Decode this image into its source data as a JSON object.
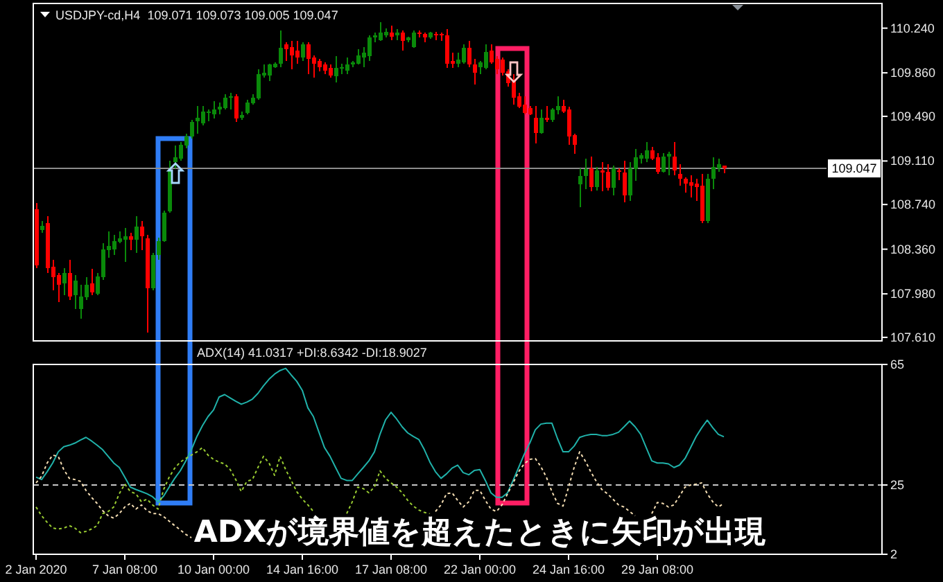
{
  "chart_data": [
    {
      "type": "candlestick",
      "title": "USDJPY-cd,H4  109.071 109.073 109.005 109.047",
      "categories": [
        null,
        null,
        null,
        null,
        null,
        null,
        null,
        null,
        null,
        null,
        null,
        null,
        null,
        null,
        null,
        null,
        null,
        null,
        null,
        null,
        null,
        null,
        null,
        null,
        null,
        null,
        null,
        null,
        null,
        null,
        null,
        null,
        null,
        null,
        null,
        null,
        null,
        null,
        null,
        null,
        null,
        null,
        null,
        null,
        null,
        null,
        null,
        null,
        null,
        null,
        null,
        null,
        null,
        null,
        null,
        null,
        null,
        null,
        null,
        null,
        null,
        null,
        null,
        null,
        null,
        null,
        null,
        null,
        null,
        null,
        null,
        null,
        null,
        null,
        null,
        null,
        null,
        null,
        null,
        null,
        null,
        null,
        null,
        null,
        null,
        null,
        null,
        null,
        null,
        null,
        null,
        null,
        null,
        null,
        null,
        null,
        null,
        null,
        null,
        null,
        null,
        null,
        null,
        null,
        null,
        null,
        null,
        null,
        null,
        null,
        null,
        null,
        null,
        null,
        null,
        null,
        null,
        null,
        null,
        null,
        null,
        null,
        null,
        null,
        null,
        null,
        null,
        null,
        null,
        null,
        null,
        null,
        null,
        null,
        null,
        null,
        null,
        null,
        null,
        null,
        null,
        null,
        null,
        null,
        null,
        null,
        null,
        null,
        null,
        null,
        null,
        null,
        null
      ],
      "ohlc": [
        [
          108.7,
          108.75,
          108.2,
          108.22
        ],
        [
          108.52,
          108.6,
          108.5,
          108.56
        ],
        [
          108.58,
          108.64,
          108.16,
          108.2
        ],
        [
          108.21,
          108.27,
          108.01,
          108.12
        ],
        [
          108.14,
          108.16,
          107.91,
          108.06
        ],
        [
          108.07,
          108.2,
          107.97,
          108.16
        ],
        [
          108.16,
          108.27,
          107.93,
          107.96
        ],
        [
          107.97,
          108.14,
          107.85,
          108.09
        ],
        [
          107.85,
          108.06,
          107.77,
          107.96
        ],
        [
          107.95,
          108.12,
          107.93,
          108.06
        ],
        [
          108.07,
          108.19,
          107.97,
          107.99
        ],
        [
          107.98,
          108.16,
          107.97,
          108.13
        ],
        [
          108.12,
          108.41,
          108.1,
          108.36
        ],
        [
          108.35,
          108.51,
          108.29,
          108.39
        ],
        [
          108.36,
          108.48,
          108.31,
          108.43
        ],
        [
          108.42,
          108.51,
          108.41,
          108.45
        ],
        [
          108.44,
          108.54,
          108.25,
          108.47
        ],
        [
          108.47,
          108.5,
          108.35,
          108.44
        ],
        [
          108.44,
          108.64,
          108.33,
          108.55
        ],
        [
          108.55,
          108.6,
          108.35,
          108.47
        ],
        [
          108.45,
          108.48,
          107.65,
          108.03
        ],
        [
          108.03,
          108.33,
          108.01,
          108.31
        ],
        [
          108.31,
          108.46,
          108.27,
          108.43
        ],
        [
          108.43,
          108.69,
          108.42,
          108.67
        ],
        [
          108.68,
          109.11,
          108.67,
          109.03
        ],
        [
          109.1,
          109.24,
          109.05,
          109.14
        ],
        [
          109.13,
          109.27,
          109.11,
          109.25
        ],
        [
          109.24,
          109.34,
          109.22,
          109.32
        ],
        [
          109.32,
          109.46,
          109.3,
          109.44
        ],
        [
          109.45,
          109.58,
          109.34,
          109.48
        ],
        [
          109.43,
          109.58,
          109.41,
          109.53
        ],
        [
          109.52,
          109.55,
          109.45,
          109.53
        ],
        [
          109.51,
          109.62,
          109.47,
          109.55
        ],
        [
          109.55,
          109.61,
          109.51,
          109.57
        ],
        [
          109.56,
          109.68,
          109.55,
          109.65
        ],
        [
          109.65,
          109.69,
          109.55,
          109.66
        ],
        [
          109.66,
          109.68,
          109.44,
          109.47
        ],
        [
          109.48,
          109.53,
          109.46,
          109.5
        ],
        [
          109.52,
          109.63,
          109.51,
          109.61
        ],
        [
          109.6,
          109.68,
          109.59,
          109.65
        ],
        [
          109.64,
          109.89,
          109.63,
          109.85
        ],
        [
          109.84,
          109.93,
          109.82,
          109.86
        ],
        [
          109.84,
          109.94,
          109.79,
          109.93
        ],
        [
          109.91,
          109.95,
          109.9,
          109.94
        ],
        [
          109.94,
          110.22,
          109.91,
          110.07
        ],
        [
          110.1,
          110.12,
          109.96,
          110.06
        ],
        [
          110.08,
          110.13,
          109.89,
          110.01
        ],
        [
          110.05,
          110.13,
          109.94,
          109.99
        ],
        [
          109.99,
          110.12,
          109.96,
          110.1
        ],
        [
          110.1,
          110.12,
          109.85,
          109.98
        ],
        [
          109.99,
          110.01,
          109.82,
          109.94
        ],
        [
          109.96,
          109.98,
          109.87,
          109.91
        ],
        [
          109.93,
          109.95,
          109.85,
          109.88
        ],
        [
          109.9,
          109.93,
          109.82,
          109.84
        ],
        [
          109.83,
          110.0,
          109.78,
          109.9
        ],
        [
          109.9,
          109.94,
          109.85,
          109.91
        ],
        [
          109.88,
          109.99,
          109.85,
          109.93
        ],
        [
          109.93,
          109.96,
          109.91,
          109.95
        ],
        [
          109.94,
          110.06,
          109.93,
          110.01
        ],
        [
          109.99,
          110.08,
          109.91,
          110.03
        ],
        [
          110.0,
          110.18,
          109.96,
          110.16
        ],
        [
          110.16,
          110.2,
          110.12,
          110.18
        ],
        [
          110.14,
          110.29,
          110.13,
          110.2
        ],
        [
          110.18,
          110.24,
          110.16,
          110.21
        ],
        [
          110.2,
          110.26,
          110.14,
          110.17
        ],
        [
          110.18,
          110.23,
          110.14,
          110.2
        ],
        [
          110.2,
          110.22,
          110.05,
          110.13
        ],
        [
          110.14,
          110.17,
          110.12,
          110.16
        ],
        [
          110.08,
          110.22,
          110.07,
          110.2
        ],
        [
          110.2,
          110.22,
          110.16,
          110.19
        ],
        [
          110.19,
          110.2,
          110.12,
          110.16
        ],
        [
          110.16,
          110.21,
          110.15,
          110.2
        ],
        [
          110.19,
          110.21,
          110.14,
          110.18
        ],
        [
          110.19,
          110.2,
          110.13,
          110.18
        ],
        [
          110.18,
          110.23,
          109.9,
          109.94
        ],
        [
          109.96,
          110.03,
          109.9,
          109.94
        ],
        [
          109.94,
          110.03,
          109.91,
          109.97
        ],
        [
          109.95,
          110.1,
          109.94,
          110.07
        ],
        [
          110.07,
          110.13,
          109.91,
          109.93
        ],
        [
          109.93,
          109.98,
          109.76,
          109.86
        ],
        [
          109.91,
          109.96,
          109.85,
          109.95
        ],
        [
          109.9,
          110.1,
          109.89,
          110.04
        ],
        [
          110.05,
          110.1,
          109.94,
          109.95
        ],
        [
          109.98,
          110.0,
          109.85,
          109.89
        ],
        [
          109.97,
          109.99,
          109.84,
          109.86
        ],
        [
          109.87,
          109.89,
          109.74,
          109.77
        ],
        [
          109.79,
          109.85,
          109.59,
          109.65
        ],
        [
          109.66,
          109.69,
          109.56,
          109.57
        ],
        [
          109.59,
          109.66,
          109.51,
          109.52
        ],
        [
          109.56,
          109.58,
          109.5,
          109.51
        ],
        [
          109.48,
          109.58,
          109.26,
          109.35
        ],
        [
          109.35,
          109.55,
          109.34,
          109.48
        ],
        [
          109.48,
          109.58,
          109.44,
          109.46
        ],
        [
          109.46,
          109.56,
          109.44,
          109.55
        ],
        [
          109.54,
          109.66,
          109.51,
          109.58
        ],
        [
          109.58,
          109.63,
          109.52,
          109.53
        ],
        [
          109.55,
          109.57,
          109.25,
          109.32
        ],
        [
          109.33,
          109.34,
          109.17,
          109.25
        ],
        [
          108.91,
          109.05,
          108.72,
          108.98
        ],
        [
          108.98,
          109.13,
          108.87,
          109.04
        ],
        [
          109.05,
          109.15,
          108.85,
          108.89
        ],
        [
          108.89,
          109.06,
          108.86,
          109.03
        ],
        [
          109.03,
          109.1,
          108.85,
          109.01
        ],
        [
          109.02,
          109.08,
          108.86,
          108.88
        ],
        [
          108.88,
          109.07,
          108.82,
          109.05
        ],
        [
          109.03,
          109.05,
          108.95,
          109.02
        ],
        [
          109.01,
          109.11,
          108.76,
          108.82
        ],
        [
          108.82,
          109.1,
          108.77,
          109.05
        ],
        [
          109.04,
          109.21,
          108.94,
          109.14
        ],
        [
          109.13,
          109.18,
          109.09,
          109.16
        ],
        [
          109.13,
          109.27,
          109.1,
          109.2
        ],
        [
          109.2,
          109.23,
          109.12,
          109.13
        ],
        [
          109.14,
          109.18,
          109.0,
          109.02
        ],
        [
          109.02,
          109.18,
          109.01,
          109.15
        ],
        [
          109.15,
          109.19,
          108.99,
          109.17
        ],
        [
          109.15,
          109.27,
          108.99,
          109.03
        ],
        [
          109.0,
          109.08,
          108.9,
          108.96
        ],
        [
          108.96,
          108.97,
          108.84,
          108.92
        ],
        [
          108.93,
          108.99,
          108.8,
          108.9
        ],
        [
          108.92,
          108.96,
          108.77,
          108.89
        ],
        [
          108.9,
          109.0,
          108.58,
          108.6
        ],
        [
          108.6,
          109.0,
          108.58,
          108.96
        ],
        [
          108.96,
          109.14,
          108.87,
          109.06
        ],
        [
          109.05,
          109.13,
          109.02,
          109.08
        ],
        [
          109.071,
          109.073,
          109.005,
          109.047
        ],
        null,
        null,
        null,
        null,
        null,
        null,
        null,
        null,
        null,
        null,
        null,
        null,
        null,
        null,
        null,
        null,
        null,
        null,
        null,
        null,
        null,
        null,
        null,
        null,
        null,
        null,
        null,
        null
      ],
      "colors": [
        "#ff0000",
        "#0a8a0a",
        "#ff0000",
        "#ff0000",
        "#ff0000",
        "#0a8a0a",
        "#ff0000",
        "#0a8a0a",
        "#0a8a0a",
        "#0a8a0a",
        "#ff0000",
        "#0a8a0a",
        "#0a8a0a",
        "#0a8a0a",
        "#0a8a0a",
        "#0a8a0a",
        "#0a8a0a",
        "#ff0000",
        "#0a8a0a",
        "#ff0000",
        "#ff0000",
        "#0a8a0a",
        "#0a8a0a",
        "#0a8a0a",
        "#0a8a0a",
        "#0a8a0a",
        "#0a8a0a",
        "#0a8a0a",
        "#0a8a0a",
        "#0a8a0a",
        "#0a8a0a",
        "#0a8a0a",
        "#0a8a0a",
        "#0a8a0a",
        "#0a8a0a",
        "#0a8a0a",
        "#ff0000",
        "#0a8a0a",
        "#0a8a0a",
        "#0a8a0a",
        "#0a8a0a",
        "#0a8a0a",
        "#0a8a0a",
        "#0a8a0a",
        "#0a8a0a",
        "#ff0000",
        "#ff0000",
        "#ff0000",
        "#0a8a0a",
        "#ff0000",
        "#ff0000",
        "#ff0000",
        "#ff0000",
        "#ff0000",
        "#0a8a0a",
        "#0a8a0a",
        "#0a8a0a",
        "#0a8a0a",
        "#0a8a0a",
        "#0a8a0a",
        "#0a8a0a",
        "#0a8a0a",
        "#0a8a0a",
        "#0a8a0a",
        "#ff0000",
        "#0a8a0a",
        "#ff0000",
        "#0a8a0a",
        "#0a8a0a",
        "#ff0000",
        "#ff0000",
        "#0a8a0a",
        "#ff0000",
        "#ff0000",
        "#ff0000",
        "#ff0000",
        "#0a8a0a",
        "#0a8a0a",
        "#ff0000",
        "#ff0000",
        "#0a8a0a",
        "#0a8a0a",
        "#ff0000",
        "#ff0000",
        "#ff0000",
        "#ff0000",
        "#ff0000",
        "#ff0000",
        "#ff0000",
        "#ff0000",
        "#ff0000",
        "#0a8a0a",
        "#ff0000",
        "#0a8a0a",
        "#0a8a0a",
        "#ff0000",
        "#ff0000",
        "#ff0000",
        "#0a8a0a",
        "#0a8a0a",
        "#ff0000",
        "#0a8a0a",
        "#ff0000",
        "#ff0000",
        "#0a8a0a",
        "#ff0000",
        "#ff0000",
        "#0a8a0a",
        "#0a8a0a",
        "#0a8a0a",
        "#0a8a0a",
        "#ff0000",
        "#ff0000",
        "#0a8a0a",
        "#0a8a0a",
        "#ff0000",
        "#ff0000",
        "#ff0000",
        "#ff0000",
        "#ff0000",
        "#ff0000",
        "#0a8a0a",
        "#0a8a0a",
        "#0a8a0a",
        "#ff0000",
        null,
        null,
        null,
        null,
        null,
        null,
        null,
        null,
        null,
        null,
        null,
        null,
        null,
        null,
        null,
        null,
        null,
        null,
        null,
        null,
        null,
        null,
        null,
        null,
        null,
        null,
        null,
        null
      ],
      "ylim": [
        107.58,
        110.45
      ],
      "yticks": [
        {
          "value": 107.61,
          "label": "107.610"
        },
        {
          "value": 107.98,
          "label": "107.980"
        },
        {
          "value": 108.36,
          "label": "108.360"
        },
        {
          "value": 108.74,
          "label": "108.740"
        },
        {
          "value": 109.11,
          "label": "109.110"
        },
        {
          "value": 109.49,
          "label": "109.490"
        },
        {
          "value": 109.86,
          "label": "109.860"
        },
        {
          "value": 110.24,
          "label": "110.240"
        }
      ],
      "ref_lines": [
        {
          "axis": "y",
          "value": 109.047,
          "label": "109.047",
          "color": "#8c8c8c"
        }
      ]
    },
    {
      "type": "line",
      "title": "ADX(14) 41.0317 +DI:8.6342 -DI:18.9027",
      "categories": [
        "2 Jan 2020",
        null,
        null,
        null,
        null,
        null,
        null,
        null,
        null,
        null,
        null,
        null,
        null,
        null,
        null,
        null,
        "7 Jan 08:00",
        null,
        null,
        null,
        null,
        null,
        null,
        null,
        null,
        null,
        null,
        null,
        null,
        null,
        null,
        null,
        "10 Jan 00:00",
        null,
        null,
        null,
        null,
        null,
        null,
        null,
        null,
        null,
        null,
        null,
        null,
        null,
        null,
        null,
        "14 Jan 16:00",
        null,
        null,
        null,
        null,
        null,
        null,
        null,
        null,
        null,
        null,
        null,
        null,
        null,
        null,
        null,
        "17 Jan 08:00",
        null,
        null,
        null,
        null,
        null,
        null,
        null,
        null,
        null,
        null,
        null,
        null,
        null,
        null,
        null,
        "22 Jan 00:00",
        null,
        null,
        null,
        null,
        null,
        null,
        null,
        null,
        null,
        null,
        null,
        null,
        null,
        null,
        null,
        "24 Jan 16:00",
        null,
        null,
        null,
        null,
        null,
        null,
        null,
        null,
        null,
        null,
        null,
        null,
        null,
        null,
        null,
        "29 Jan 08:00",
        null,
        null,
        null,
        null,
        null,
        null,
        null,
        null,
        null,
        null,
        null,
        null,
        null,
        null,
        null,
        null,
        null,
        null,
        null,
        null,
        null,
        null,
        null,
        null,
        null,
        null,
        null,
        null,
        null,
        null,
        null,
        null,
        null,
        null,
        null,
        null,
        null,
        null,
        null,
        null
      ],
      "series": [
        {
          "color": "#20b2aa",
          "line_style": "solid",
          "values": [
            27.6,
            26.8,
            29.4,
            32.3,
            36.0,
            37.7,
            38.2,
            38.9,
            39.9,
            40.8,
            39.6,
            38.2,
            36.7,
            34.5,
            32.3,
            30.8,
            27.6,
            24.3,
            23.5,
            22.8,
            22.1,
            21.1,
            19.4,
            21.3,
            24.3,
            27.2,
            29.7,
            33.0,
            36.7,
            41.1,
            44.7,
            47.7,
            49.9,
            54.2,
            55.0,
            53.9,
            52.8,
            51.8,
            52.5,
            53.5,
            55.4,
            57.9,
            60.1,
            61.8,
            63.0,
            63.7,
            61.5,
            59.4,
            56.4,
            50.6,
            47.7,
            42.5,
            37.4,
            34.5,
            30.8,
            27.2,
            26.5,
            26.5,
            28.7,
            30.8,
            33.0,
            36.0,
            41.8,
            46.6,
            49.1,
            46.9,
            44.3,
            42.3,
            41.1,
            40.1,
            36.7,
            32.6,
            29.4,
            27.2,
            28.7,
            30.6,
            31.6,
            29.1,
            28.4,
            29.8,
            30.1,
            26.5,
            22.4,
            20.9,
            20.9,
            22.4,
            26.5,
            30.8,
            35.2,
            38.9,
            43.3,
            45.2,
            45.5,
            45.5,
            40.4,
            36.0,
            36.0,
            37.9,
            40.8,
            41.4,
            41.8,
            41.8,
            41.4,
            41.4,
            41.8,
            42.5,
            44.3,
            46.2,
            44.3,
            41.8,
            37.4,
            33.0,
            32.3,
            32.3,
            32.0,
            30.8,
            31.6,
            33.8,
            37.4,
            41.1,
            44.0,
            46.5,
            44.0,
            41.8,
            41.0,
            null,
            null,
            null,
            null,
            null,
            null,
            null,
            null,
            null,
            null,
            null,
            null,
            null,
            null,
            null,
            null,
            null,
            null,
            null,
            null,
            null,
            null,
            null,
            null,
            null,
            null,
            null,
            null
          ]
        },
        {
          "color": "#9acd32",
          "line_style": "dotted",
          "values": [
            17.7,
            14.8,
            12.6,
            10.7,
            10.4,
            10.7,
            11.5,
            10.7,
            9.2,
            9.6,
            10.4,
            11.5,
            15.5,
            16.2,
            17.7,
            22.1,
            25.3,
            22.8,
            22.1,
            19.4,
            20.3,
            18.4,
            17.0,
            23.5,
            27.6,
            30.6,
            32.6,
            33.8,
            34.9,
            36.0,
            37.4,
            34.9,
            33.5,
            32.6,
            32.0,
            30.1,
            26.8,
            22.8,
            26.2,
            26.8,
            30.8,
            34.5,
            32.3,
            28.2,
            34.5,
            30.1,
            26.5,
            22.8,
            20.3,
            18.4,
            16.2,
            null,
            null,
            null,
            null,
            null,
            15.5,
            19.4,
            24.3,
            23.8,
            22.4,
            24.3,
            29.7,
            27.2,
            25.7,
            24.3,
            22.4,
            19.9,
            18.0,
            16.7,
            15.9,
            15.4,
            null,
            null,
            null,
            null,
            null,
            null,
            null,
            null,
            null,
            null,
            null,
            null,
            null,
            null,
            null,
            null,
            null,
            null,
            null,
            null,
            null,
            null,
            null,
            null,
            null,
            null,
            null,
            null,
            null,
            null,
            null,
            null,
            null,
            null,
            null,
            null,
            null,
            null,
            null,
            null,
            null,
            null,
            null,
            null,
            null,
            null,
            null,
            null,
            null,
            null,
            null,
            null,
            null,
            null,
            null,
            null,
            null,
            null,
            null,
            null,
            null,
            null,
            null,
            null,
            null,
            null,
            null,
            null,
            null,
            null,
            null,
            null,
            null,
            null,
            null,
            null,
            null,
            null,
            null,
            null,
            null
          ]
        },
        {
          "color": "#f5deb3",
          "line_style": "dotted",
          "values": [
            25.7,
            27.9,
            32.3,
            34.9,
            34.5,
            30.1,
            27.2,
            26.8,
            26.2,
            23.2,
            20.9,
            18.9,
            16.5,
            14.8,
            14.0,
            15.5,
            17.7,
            18.9,
            17.0,
            18.4,
            16.5,
            15.5,
            15.5,
            14.5,
            13.0,
            11.5,
            10.1,
            8.6,
            7.5,
            null,
            null,
            null,
            null,
            null,
            null,
            null,
            null,
            null,
            null,
            null,
            null,
            null,
            null,
            null,
            null,
            null,
            null,
            null,
            null,
            null,
            null,
            null,
            null,
            null,
            null,
            null,
            null,
            null,
            null,
            null,
            null,
            null,
            null,
            null,
            null,
            null,
            null,
            null,
            null,
            null,
            null,
            null,
            16.2,
            18.4,
            22.1,
            22.4,
            19.9,
            17.7,
            19.4,
            23.2,
            23.2,
            19.9,
            17.0,
            16.2,
            18.4,
            22.1,
            25.7,
            29.4,
            32.0,
            33.5,
            33.8,
            31.1,
            27.6,
            22.8,
            18.9,
            18.0,
            24.3,
            30.8,
            36.0,
            33.0,
            29.4,
            26.2,
            23.5,
            22.1,
            20.3,
            18.4,
            17.7,
            16.2,
            14.8,
            null,
            null,
            15.5,
            19.2,
            18.9,
            17.7,
            18.4,
            21.3,
            24.3,
            25.0,
            25.3,
            25.7,
            22.1,
            19.4,
            17.7,
            18.9,
            null,
            null,
            null,
            null,
            null,
            null,
            null,
            null,
            null,
            null,
            null,
            null,
            null,
            null,
            null,
            null,
            null,
            null,
            null,
            null,
            null,
            null,
            null,
            null,
            null,
            null,
            null,
            null
          ]
        }
      ],
      "ylim": [
        2,
        65
      ],
      "yticks": [
        2,
        25,
        65
      ],
      "ref_lines": [
        {
          "axis": "y",
          "value": 25,
          "color": "#c8c8c8",
          "line_style": "dashed"
        }
      ],
      "annotations": [
        "ADXが境界値を超えたときに矢印が出現"
      ]
    }
  ]
}
